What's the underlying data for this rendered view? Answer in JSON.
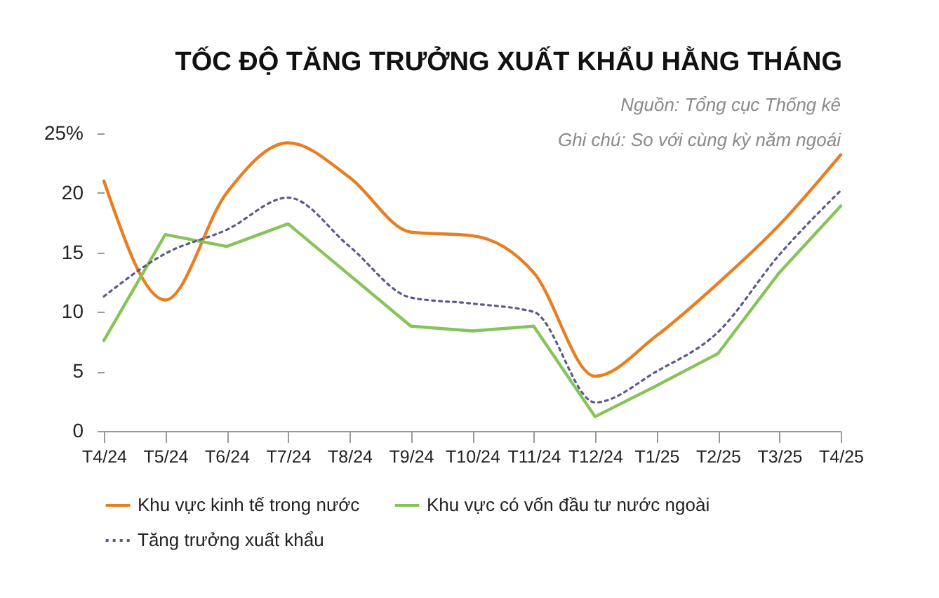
{
  "chart_data": {
    "type": "line",
    "title": "TỐC ĐỘ TĂNG TRƯỞNG XUẤT KHẨU HẰNG THÁNG",
    "annotations": [
      "Nguồn: Tổng cục Thống kê",
      "Ghi chú: So với cùng kỳ năm ngoái"
    ],
    "categories": [
      "T4/24",
      "T5/24",
      "T6/24",
      "T7/24",
      "T8/24",
      "T9/24",
      "T10/24",
      "T11/24",
      "T12/24",
      "T1/25",
      "T2/25",
      "T3/25",
      "T4/25"
    ],
    "series": [
      {
        "name": "Khu vực kinh tế trong nước",
        "color": "#e87e22",
        "line_style": "solid",
        "values": [
          21,
          11,
          20,
          24.2,
          21.3,
          16.7,
          16.4,
          13.3,
          4.6,
          8,
          12.4,
          17.3,
          23.2
        ]
      },
      {
        "name": "Khu vực có vốn đầu tư nước ngoài",
        "color": "#86c45a",
        "line_style": "solid",
        "values": [
          7.6,
          16.5,
          15.5,
          17.4,
          13.1,
          8.8,
          8.4,
          8.8,
          1.2,
          3.8,
          6.5,
          13.3,
          18.9
        ]
      },
      {
        "name": "Tăng trưởng xuất khẩu",
        "color": "#5a5a8c",
        "line_style": "dotted",
        "values": [
          11.3,
          14.9,
          16.9,
          19.6,
          15.5,
          11.2,
          10.7,
          10,
          2.4,
          5,
          8.3,
          14.8,
          20.2
        ]
      }
    ],
    "ylim": [
      0,
      25
    ],
    "yticks": [
      0,
      5,
      10,
      15,
      20,
      {
        "value": 25,
        "label": "25%"
      }
    ],
    "grid": false,
    "legend": "bottom",
    "marker": "none"
  }
}
